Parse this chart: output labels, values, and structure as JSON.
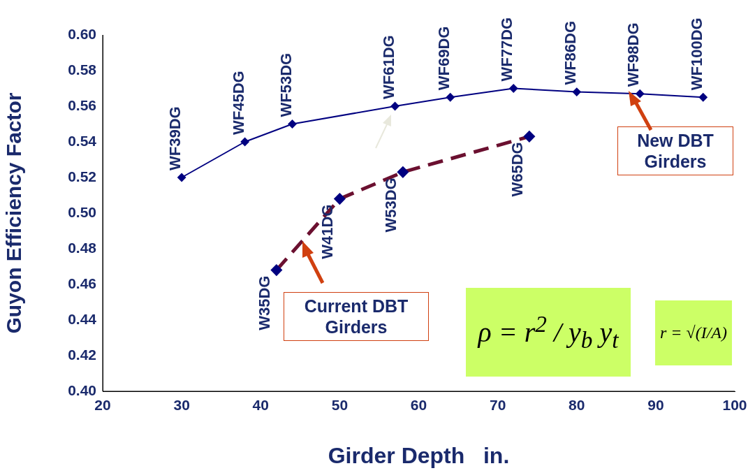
{
  "chart_data": {
    "type": "line",
    "xlabel": "Girder Depth   in.",
    "ylabel": "Guyon Efficiency Factor",
    "xlim": [
      20,
      100
    ],
    "xticks": [
      20,
      30,
      40,
      50,
      60,
      70,
      80,
      90,
      100
    ],
    "ylim": [
      0.4,
      0.6
    ],
    "yticks": [
      {
        "value": 0.4,
        "label": "0.40"
      },
      {
        "value": 0.42,
        "label": "0.42"
      },
      {
        "value": 0.44,
        "label": "0.44"
      },
      {
        "value": 0.46,
        "label": "0.46"
      },
      {
        "value": 0.48,
        "label": "0.48"
      },
      {
        "value": 0.5,
        "label": "0.50"
      },
      {
        "value": 0.52,
        "label": "0.52"
      },
      {
        "value": 0.54,
        "label": "0.54"
      },
      {
        "value": 0.56,
        "label": "0.56"
      },
      {
        "value": 0.58,
        "label": "0.58"
      },
      {
        "value": 0.6,
        "label": "0.60"
      }
    ],
    "grid": false,
    "legend": false,
    "marker": "diamond",
    "series": [
      {
        "color": "#000080",
        "line_style": "solid",
        "x": [
          30,
          38,
          44,
          57,
          64,
          72,
          80,
          88,
          96
        ],
        "values": [
          0.52,
          0.54,
          0.55,
          0.56,
          0.565,
          0.57,
          0.568,
          0.567,
          0.565
        ]
      },
      {
        "color": "#6b1030",
        "line_style": "dashed",
        "x": [
          42,
          50,
          58,
          74
        ],
        "values": [
          0.468,
          0.508,
          0.523,
          0.543
        ]
      }
    ],
    "annotations": [
      {
        "text": "WF39DG",
        "x": 30,
        "y": 0.52
      },
      {
        "text": "WF45DG",
        "x": 38,
        "y": 0.54
      },
      {
        "text": "WF53DG",
        "x": 44,
        "y": 0.55
      },
      {
        "text": "WF61DG",
        "x": 57,
        "y": 0.56
      },
      {
        "text": "WF69DG",
        "x": 64,
        "y": 0.565
      },
      {
        "text": "WF77DG",
        "x": 72,
        "y": 0.57
      },
      {
        "text": "WF86DG",
        "x": 80,
        "y": 0.568
      },
      {
        "text": "WF98DG",
        "x": 88,
        "y": 0.567
      },
      {
        "text": "WF100DG",
        "x": 96,
        "y": 0.565
      },
      {
        "text": "W35DG",
        "x": 42,
        "y": 0.468
      },
      {
        "text": "W41DG",
        "x": 50,
        "y": 0.508
      },
      {
        "text": "W53DG",
        "x": 58,
        "y": 0.523
      },
      {
        "text": "W65DG",
        "x": 74,
        "y": 0.543
      },
      "New DBT Girders",
      "Current DBT Girders",
      "ρ = r$^{2}$ / y$_{b}$ y$_{t}$",
      "r = √(I/A)"
    ]
  }
}
